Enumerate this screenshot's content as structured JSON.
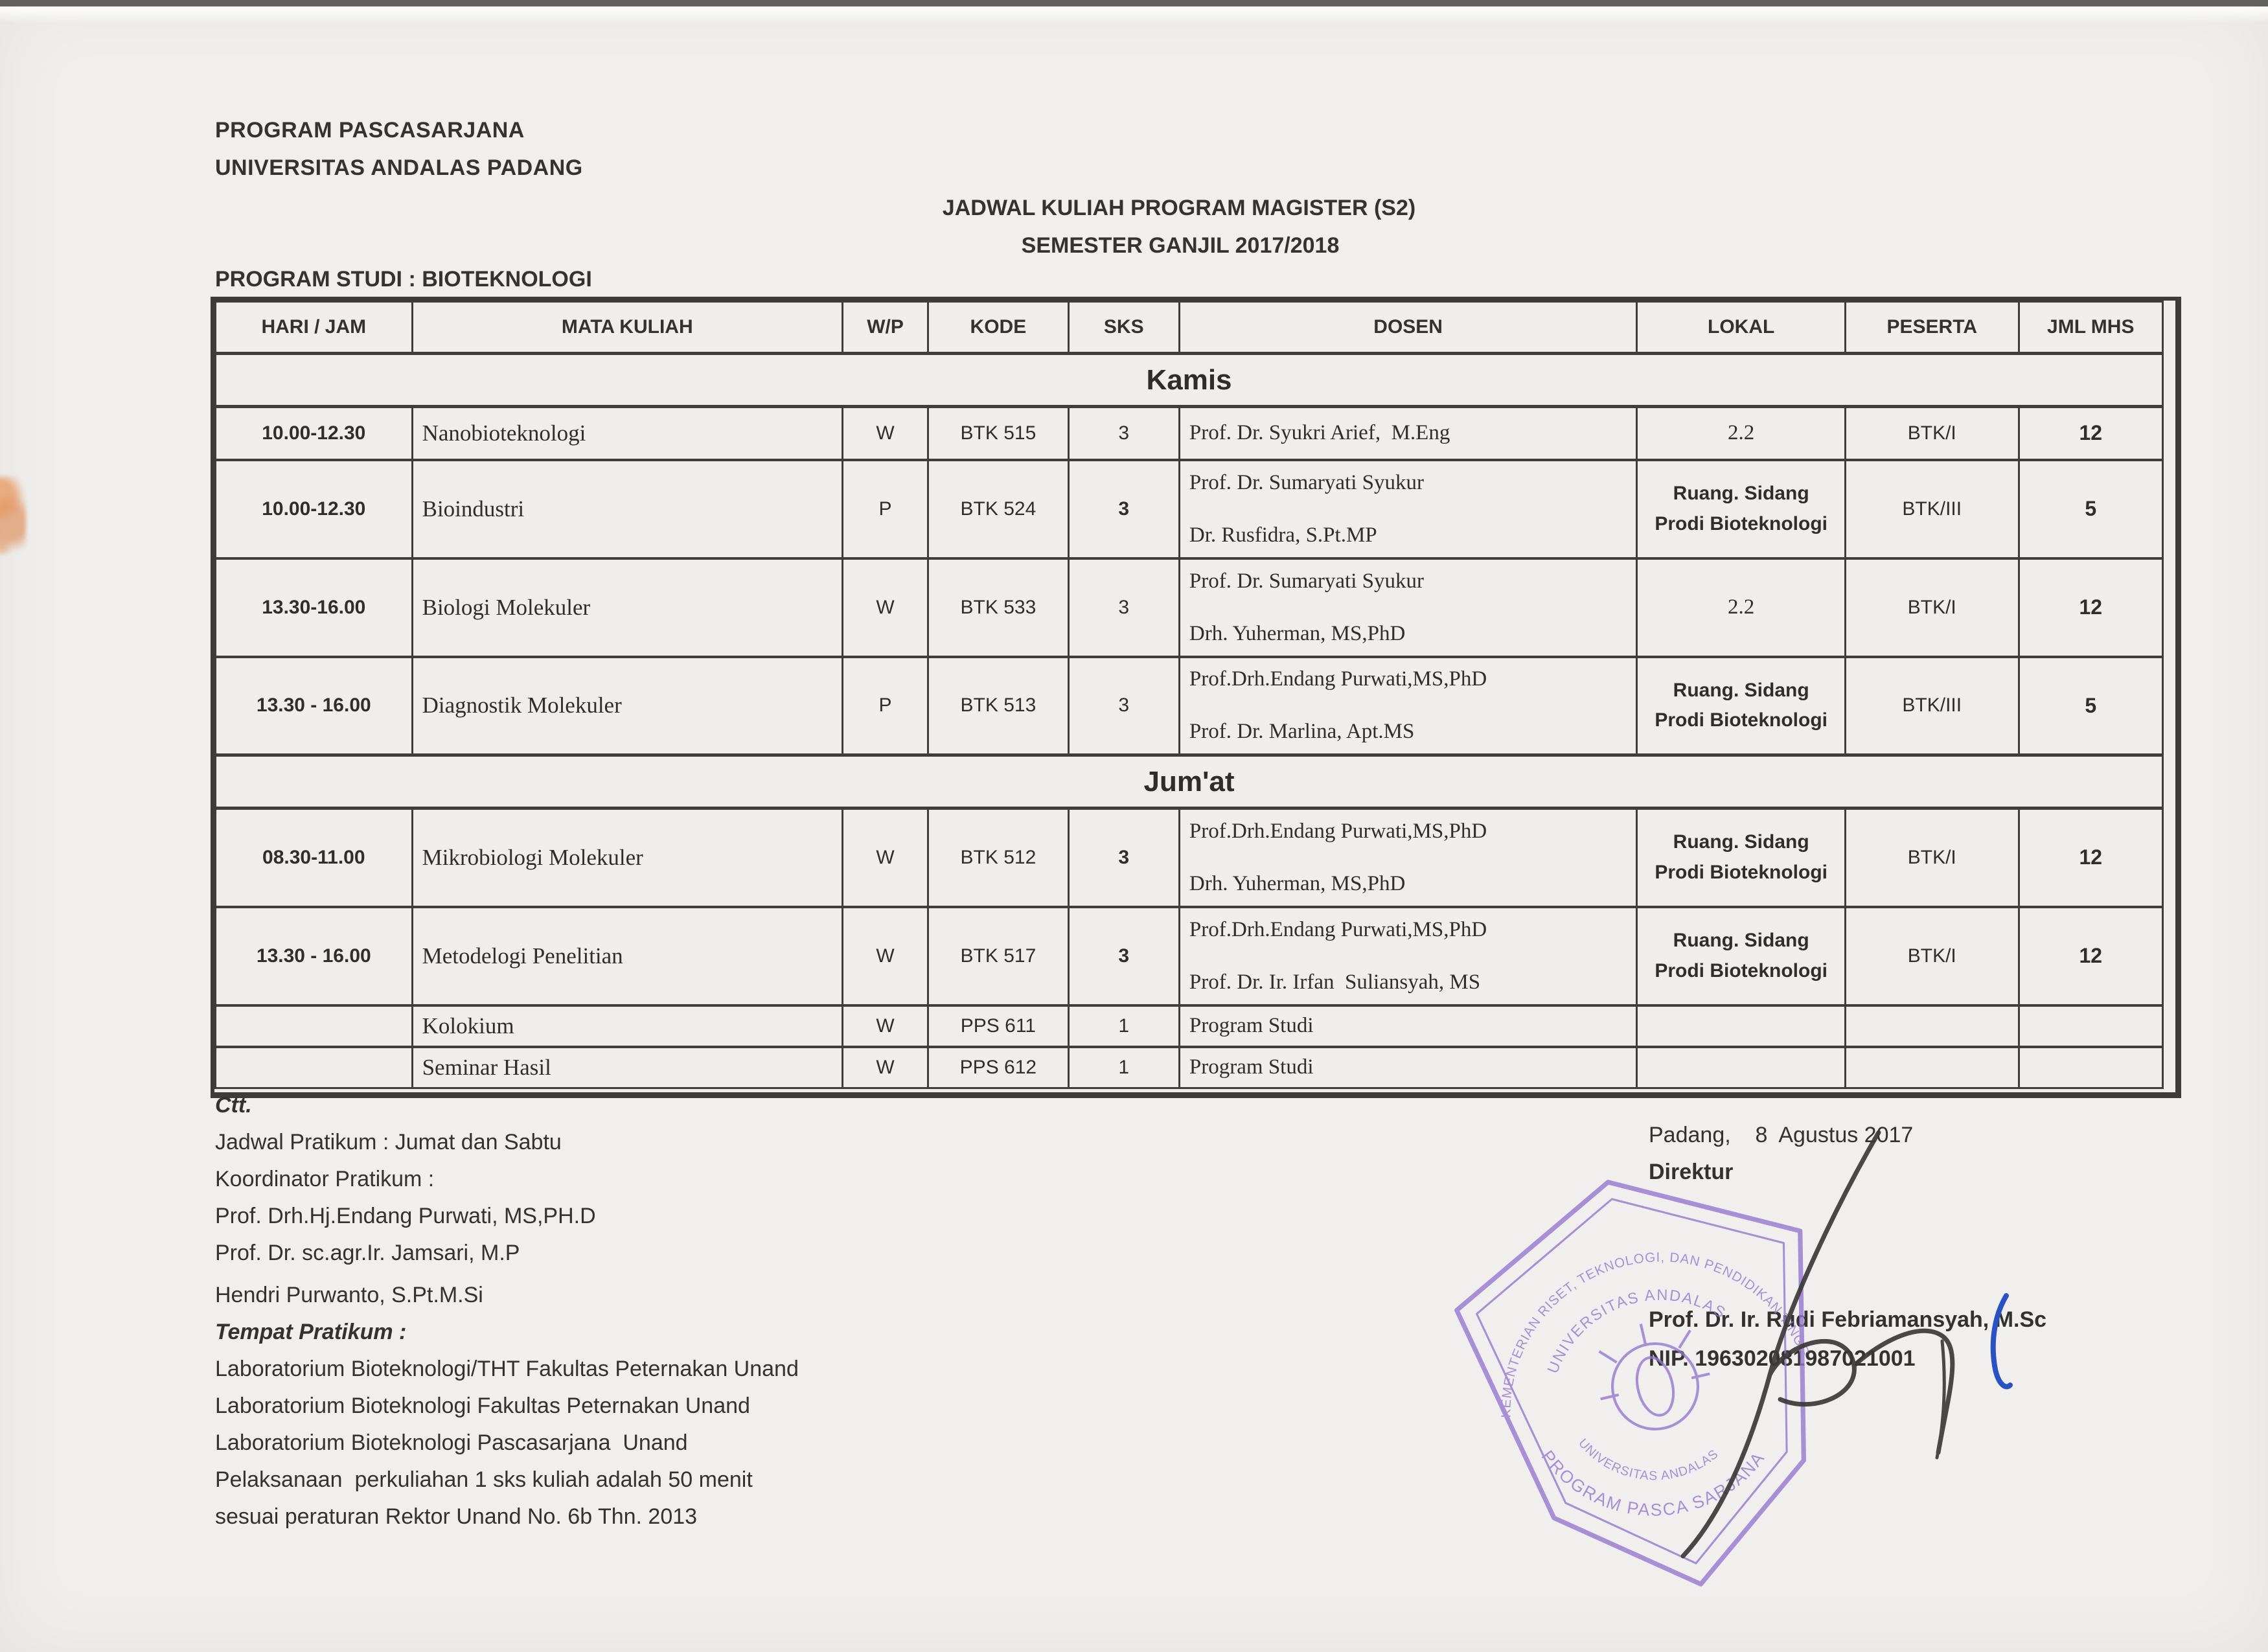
{
  "header": {
    "org_line1": "PROGRAM PASCASARJANA",
    "org_line2": "UNIVERSITAS ANDALAS PADANG",
    "title_line1": "JADWAL KULIAH PROGRAM MAGISTER (S2)",
    "title_line2": "SEMESTER GANJIL 2017/2018",
    "program_study": "PROGRAM STUDI : BIOTEKNOLOGI"
  },
  "table": {
    "columns": [
      "HARI / JAM",
      "MATA KULIAH",
      "W/P",
      "KODE",
      "SKS",
      "DOSEN",
      "LOKAL",
      "PESERTA",
      "JML MHS"
    ],
    "sections": [
      {
        "day": "Kamis",
        "rows": [
          {
            "time": "10.00-12.30",
            "course": "Nanobioteknologi",
            "wp": "W",
            "kode": "BTK 515",
            "sks": "3",
            "sks_bold": false,
            "dosen": [
              "Prof. Dr. Syukri Arief,  M.Eng"
            ],
            "lokal": "2.2",
            "lokal_plain": true,
            "peserta": "BTK/I",
            "jml": "12"
          },
          {
            "time": "10.00-12.30",
            "course": "Bioindustri",
            "wp": "P",
            "kode": "BTK 524",
            "sks": "3",
            "sks_bold": true,
            "dosen": [
              "Prof. Dr. Sumaryati Syukur",
              "Dr. Rusfidra, S.Pt.MP"
            ],
            "lokal": "Ruang. Sidang Prodi Bioteknologi",
            "lokal_plain": false,
            "peserta": "BTK/III",
            "jml": "5"
          },
          {
            "time": "13.30-16.00",
            "course": "Biologi Molekuler",
            "wp": "W",
            "kode": "BTK 533",
            "sks": "3",
            "sks_bold": false,
            "dosen": [
              "Prof. Dr. Sumaryati Syukur",
              "Drh. Yuherman, MS,PhD"
            ],
            "lokal": "2.2",
            "lokal_plain": true,
            "peserta": "BTK/I",
            "jml": "12"
          },
          {
            "time": "13.30 - 16.00",
            "course": "Diagnostik Molekuler",
            "wp": "P",
            "kode": "BTK 513",
            "sks": "3",
            "sks_bold": false,
            "dosen": [
              "Prof.Drh.Endang Purwati,MS,PhD",
              "Prof. Dr. Marlina, Apt.MS"
            ],
            "lokal": "Ruang. Sidang Prodi Bioteknologi",
            "lokal_plain": false,
            "peserta": "BTK/III",
            "jml": "5"
          }
        ]
      },
      {
        "day": "Jum'at",
        "rows": [
          {
            "time": "08.30-11.00",
            "course": "Mikrobiologi Molekuler",
            "wp": "W",
            "kode": "BTK 512",
            "sks": "3",
            "sks_bold": true,
            "dosen": [
              "Prof.Drh.Endang Purwati,MS,PhD",
              "Drh. Yuherman, MS,PhD"
            ],
            "lokal": "Ruang. Sidang Prodi Bioteknologi",
            "lokal_plain": false,
            "peserta": "BTK/I",
            "jml": "12"
          },
          {
            "time": "13.30 - 16.00",
            "course": "Metodelogi Penelitian",
            "wp": "W",
            "kode": "BTK 517",
            "sks": "3",
            "sks_bold": true,
            "dosen": [
              "Prof.Drh.Endang Purwati,MS,PhD",
              "Prof. Dr. Ir. Irfan  Suliansyah, MS"
            ],
            "lokal": "Ruang. Sidang Prodi Bioteknologi",
            "lokal_plain": false,
            "peserta": "BTK/I",
            "jml": "12"
          },
          {
            "time": "",
            "course": "Kolokium",
            "wp": "W",
            "kode": "PPS 611",
            "sks": "1",
            "sks_bold": false,
            "dosen": [
              "Program Studi"
            ],
            "lokal": "",
            "lokal_plain": true,
            "peserta": "",
            "jml": ""
          },
          {
            "time": "",
            "course": "Seminar Hasil",
            "wp": "W",
            "kode": "PPS 612",
            "sks": "1",
            "sks_bold": false,
            "dosen": [
              "Program Studi"
            ],
            "lokal": "",
            "lokal_plain": true,
            "peserta": "",
            "jml": ""
          }
        ]
      }
    ]
  },
  "notes": {
    "lines": [
      {
        "text": "Ctt.",
        "emphasis": true,
        "gap": false
      },
      {
        "text": "Jadwal Pratikum : Jumat dan Sabtu",
        "emphasis": false,
        "gap": false
      },
      {
        "text": "Koordinator Pratikum :",
        "emphasis": false,
        "gap": false
      },
      {
        "text": "Prof. Drh.Hj.Endang Purwati, MS,PH.D",
        "emphasis": false,
        "gap": false
      },
      {
        "text": "Prof. Dr. sc.agr.Ir. Jamsari, M.P",
        "emphasis": false,
        "gap": false
      },
      {
        "text": "Hendri Purwanto, S.Pt.M.Si",
        "emphasis": false,
        "gap": true
      },
      {
        "text": "Tempat Pratikum :",
        "emphasis": true,
        "gap": false
      },
      {
        "text": "Laboratorium Bioteknologi/THT Fakultas Peternakan Unand",
        "emphasis": false,
        "gap": false
      },
      {
        "text": "Laboratorium Bioteknologi Fakultas Peternakan Unand",
        "emphasis": false,
        "gap": false
      },
      {
        "text": "Laboratorium Bioteknologi Pascasarjana  Unand",
        "emphasis": false,
        "gap": false
      },
      {
        "text": "Pelaksanaan  perkuliahan 1 sks kuliah adalah 50 menit",
        "emphasis": false,
        "gap": false
      },
      {
        "text": "sesuai peraturan Rektor Unand No. 6b Thn. 2013",
        "emphasis": false,
        "gap": false
      }
    ]
  },
  "signature": {
    "place_date": "Padang,    8  Agustus 2017",
    "role": "Direktur",
    "name": "Prof. Dr. Ir. Rudi Febriamansyah, M.Sc",
    "nip": "NIP. 196302081987021001"
  },
  "stamp": {
    "arc_top": "KEMENTERIAN RISET, TEKNOLOGI, DAN PENDIDIKAN TINGGI",
    "arc_top_inner": "UNIVERSITAS ANDALAS",
    "arc_bottom": "PROGRAM PASCA SARJANA",
    "arc_bottom_inner": "UNIVERSITAS ANDALAS",
    "color": "#9478cf"
  },
  "ink_colors": {
    "signature": "#3b3a38",
    "paraph": "#2a52c4"
  }
}
